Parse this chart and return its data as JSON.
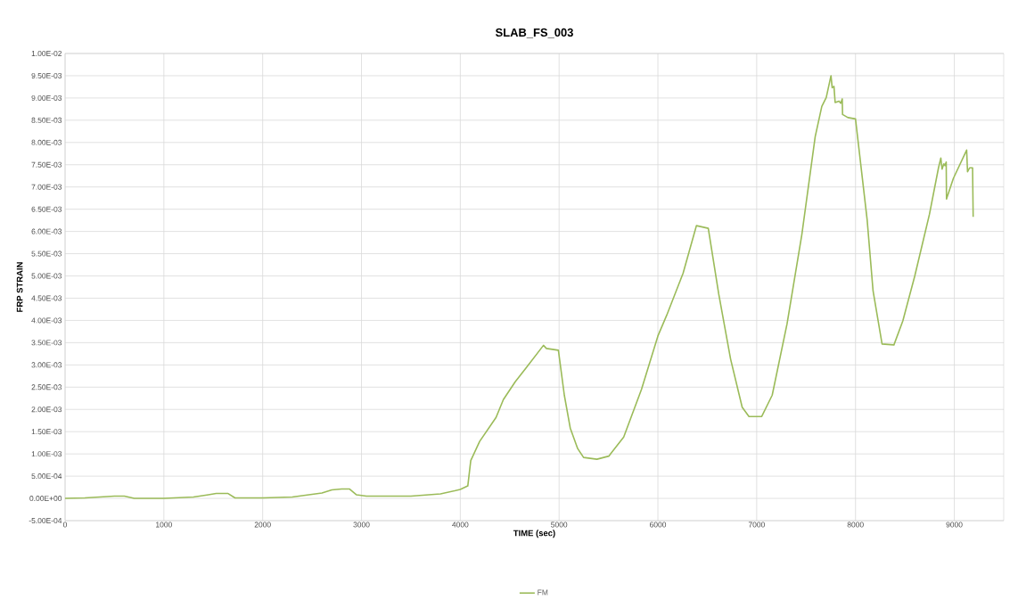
{
  "chart_data": {
    "type": "line",
    "title": "SLAB_FS_003",
    "xlabel": "TIME (sec)",
    "ylabel": "FRP STRAIN",
    "xlim": [
      0,
      9500
    ],
    "xticks": [
      0,
      1000,
      2000,
      3000,
      4000,
      5000,
      6000,
      7000,
      8000,
      9000
    ],
    "ylim": [
      -0.0005,
      0.01
    ],
    "yticks": [
      {
        "value": -0.0005,
        "label": "-5.00E-04"
      },
      {
        "value": 0,
        "label": "0.00E+00"
      },
      {
        "value": 0.0005,
        "label": "5.00E-04"
      },
      {
        "value": 0.001,
        "label": "1.00E-03"
      },
      {
        "value": 0.0015,
        "label": "1.50E-03"
      },
      {
        "value": 0.002,
        "label": "2.00E-03"
      },
      {
        "value": 0.0025,
        "label": "2.50E-03"
      },
      {
        "value": 0.003,
        "label": "3.00E-03"
      },
      {
        "value": 0.0035,
        "label": "3.50E-03"
      },
      {
        "value": 0.004,
        "label": "4.00E-03"
      },
      {
        "value": 0.0045,
        "label": "4.50E-03"
      },
      {
        "value": 0.005,
        "label": "5.00E-03"
      },
      {
        "value": 0.0055,
        "label": "5.50E-03"
      },
      {
        "value": 0.006,
        "label": "6.00E-03"
      },
      {
        "value": 0.0065,
        "label": "6.50E-03"
      },
      {
        "value": 0.007,
        "label": "7.00E-03"
      },
      {
        "value": 0.0075,
        "label": "7.50E-03"
      },
      {
        "value": 0.008,
        "label": "8.00E-03"
      },
      {
        "value": 0.0085,
        "label": "8.50E-03"
      },
      {
        "value": 0.009,
        "label": "9.00E-03"
      },
      {
        "value": 0.0095,
        "label": "9.50E-03"
      },
      {
        "value": 0.01,
        "label": "1.00E-02"
      }
    ],
    "grid": true,
    "legend": "bottom",
    "marker": "none",
    "line_style": "solid",
    "series": [
      {
        "name": "FM",
        "color": "#9bbb59",
        "x": [
          0,
          200,
          500,
          600,
          700,
          1000,
          1300,
          1450,
          1530,
          1650,
          1720,
          2000,
          2300,
          2600,
          2700,
          2800,
          2880,
          2950,
          3050,
          3500,
          3800,
          4000,
          4076,
          4106,
          4196,
          4362,
          4436,
          4556,
          4662,
          4842,
          4872,
          4993,
          5053,
          5113,
          5188,
          5248,
          5383,
          5503,
          5654,
          5834,
          6000,
          6090,
          6255,
          6390,
          6510,
          6616,
          6736,
          6853,
          6922,
          7051,
          7157,
          7307,
          7457,
          7592,
          7659,
          7704,
          7752,
          7764,
          7782,
          7794,
          7833,
          7850,
          7866,
          7869,
          7923,
          8000,
          8118,
          8178,
          8269,
          8389,
          8479,
          8599,
          8749,
          8840,
          8864,
          8876,
          8894,
          8906,
          8918,
          8921,
          8990,
          9125,
          9134,
          9155,
          9185,
          9191
        ],
        "values": [
          0,
          1e-05,
          5e-05,
          5e-05,
          0,
          0,
          3e-05,
          8e-05,
          0.00011,
          0.00011,
          1e-05,
          1e-05,
          3e-05,
          0.00012,
          0.00019,
          0.00021,
          0.00021,
          8e-05,
          5e-05,
          5e-05,
          0.0001,
          0.0002,
          0.00028,
          0.00085,
          0.00128,
          0.00182,
          0.00222,
          0.00262,
          0.00292,
          0.00344,
          0.00337,
          0.00333,
          0.00232,
          0.00158,
          0.00112,
          0.00092,
          0.00088,
          0.00095,
          0.00138,
          0.00245,
          0.00365,
          0.00412,
          0.00506,
          0.00613,
          0.00607,
          0.00459,
          0.00313,
          0.00205,
          0.00184,
          0.00184,
          0.00232,
          0.00392,
          0.00593,
          0.00813,
          0.00881,
          0.00901,
          0.0095,
          0.00923,
          0.00926,
          0.0089,
          0.00893,
          0.00888,
          0.00898,
          0.00863,
          0.00856,
          0.00853,
          0.00626,
          0.00466,
          0.00347,
          0.00345,
          0.00399,
          0.00499,
          0.00639,
          0.00743,
          0.00765,
          0.0074,
          0.00752,
          0.00748,
          0.00756,
          0.00673,
          0.00719,
          0.00783,
          0.00734,
          0.00743,
          0.00743,
          0.00633
        ]
      }
    ]
  }
}
